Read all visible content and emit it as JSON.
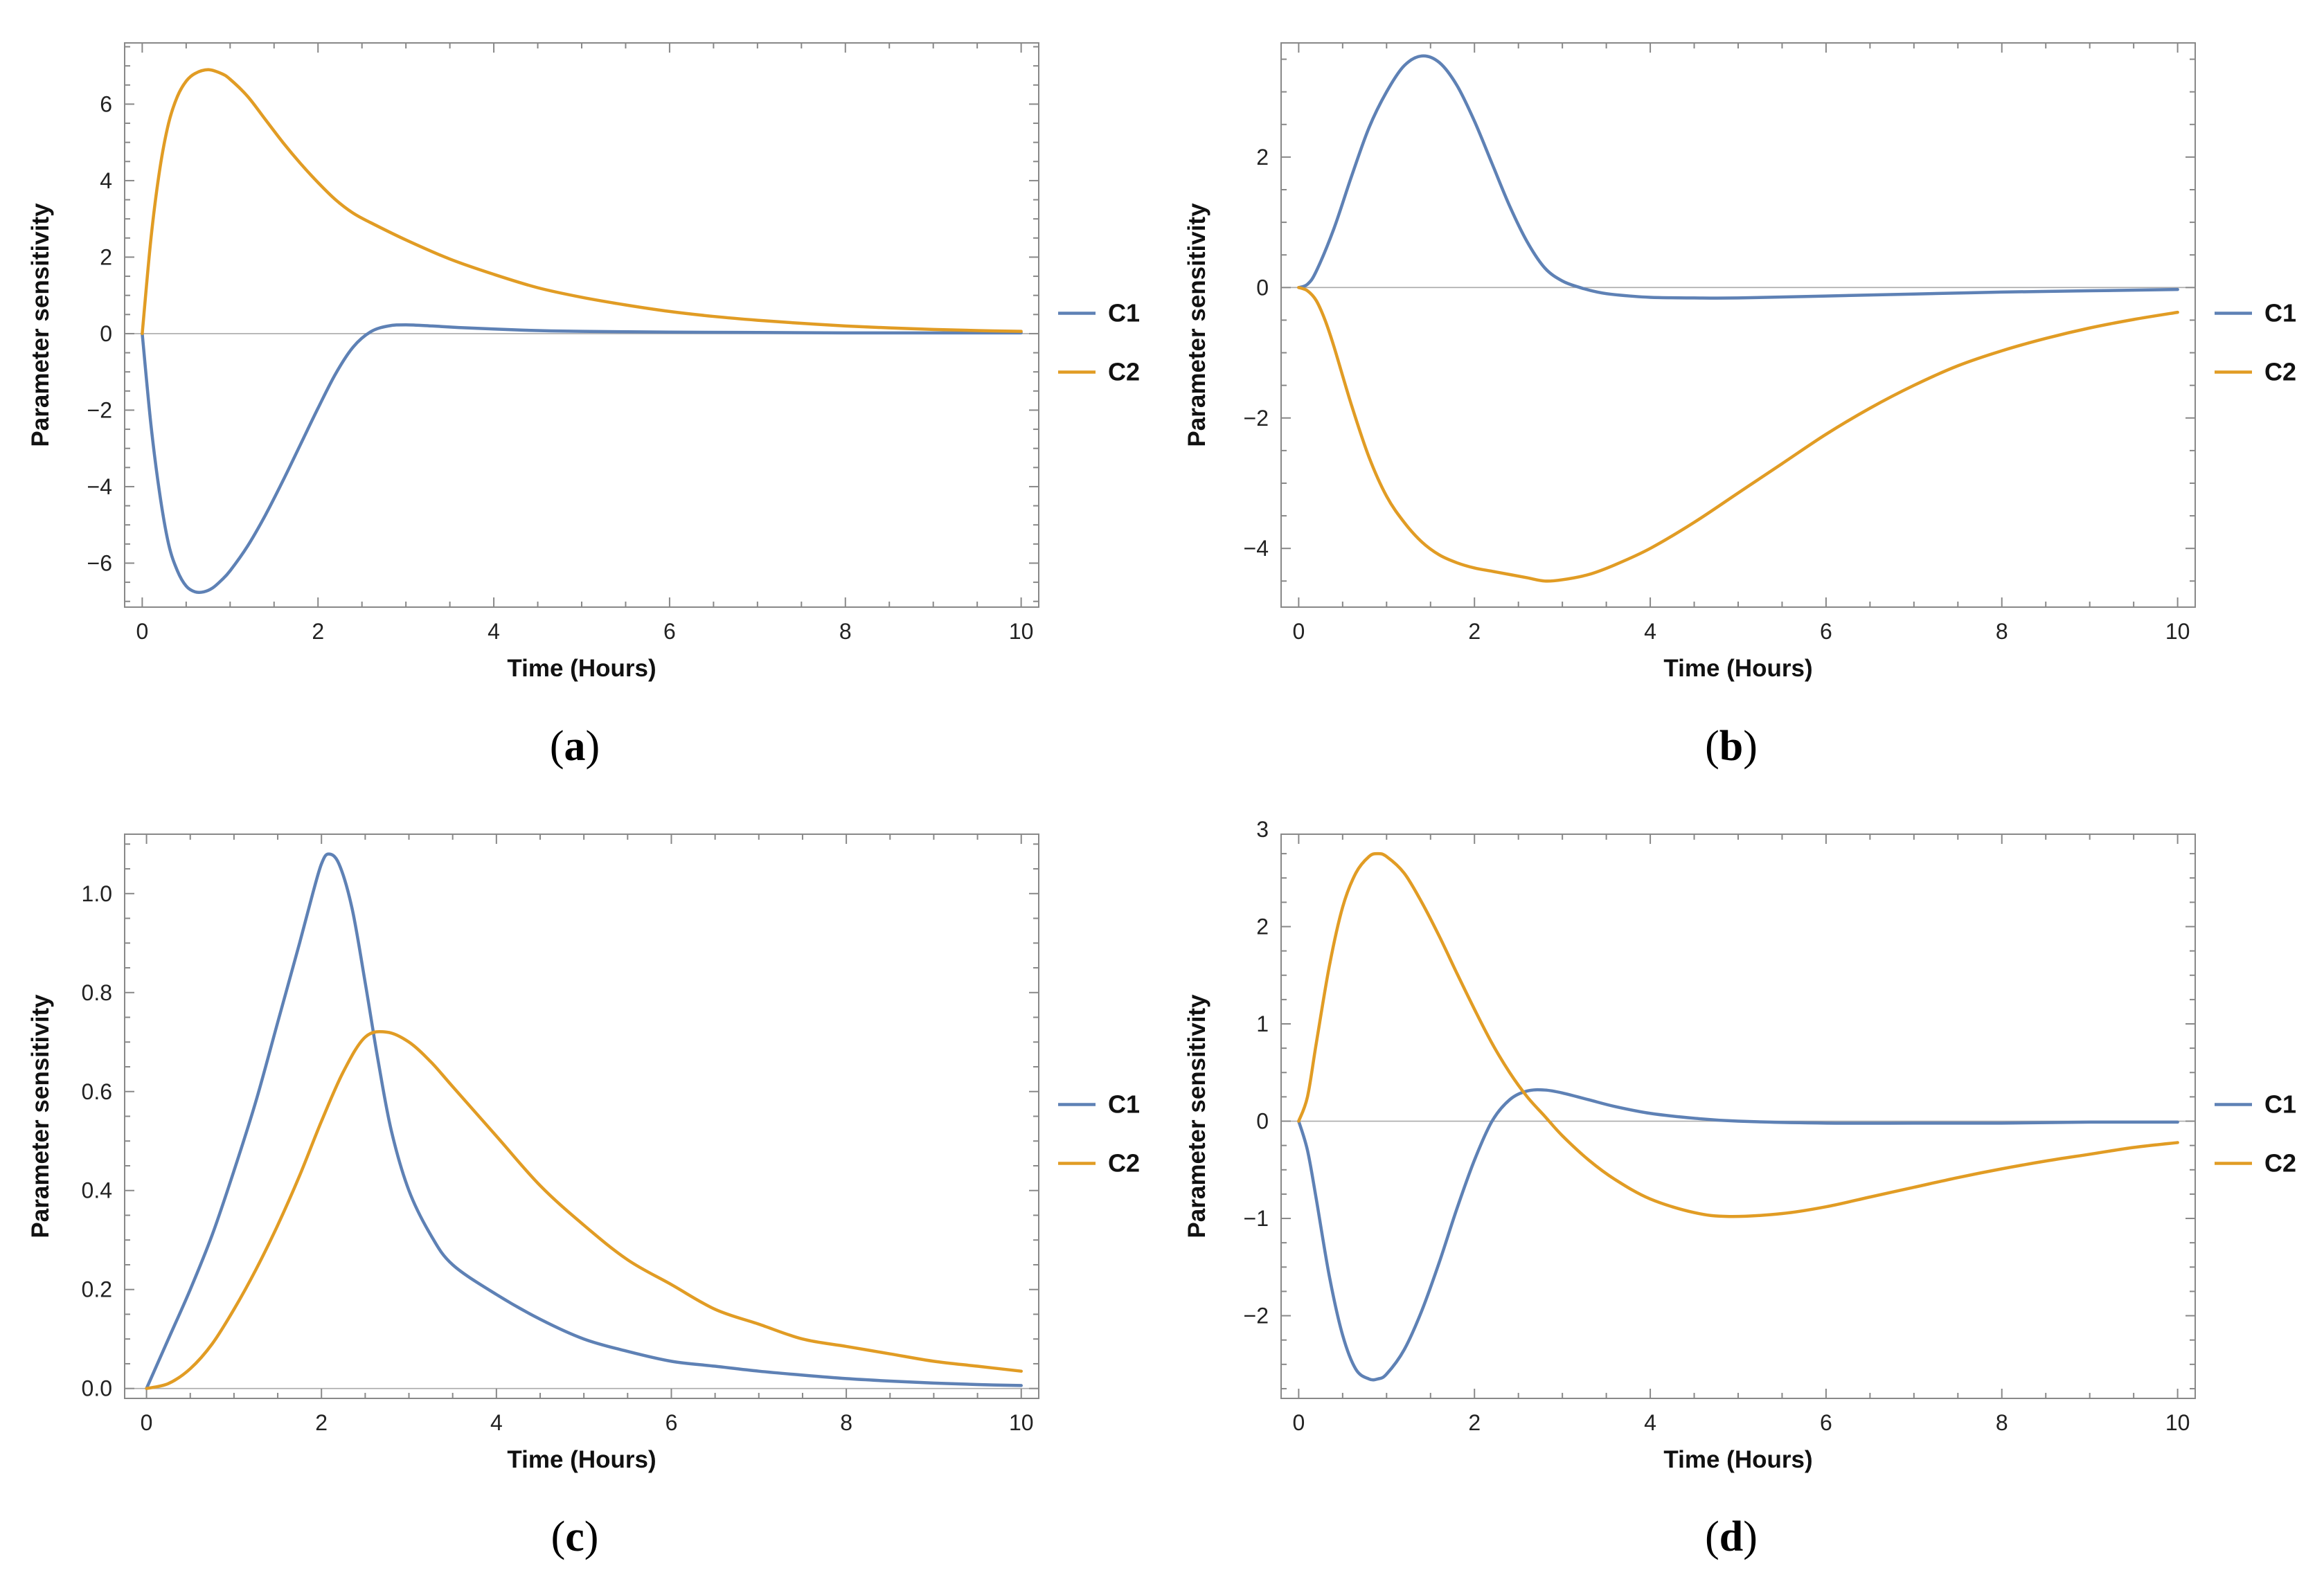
{
  "colors": {
    "C1": "#5e81b5",
    "C2": "#e19c24",
    "frame": "#888888",
    "zero_line": "#aaaaaa"
  },
  "chart_data": [
    {
      "type": "line",
      "panel": "a",
      "caption_letter": "a",
      "title": "",
      "xlabel": "Time (Hours)",
      "ylabel": "Parameter sensitivity",
      "xlim": [
        -0.2,
        10.2
      ],
      "ylim": [
        -7.15,
        7.6
      ],
      "xticks": [
        0,
        2,
        4,
        6,
        8,
        10
      ],
      "xtick_labels": [
        "0",
        "2",
        "4",
        "6",
        "8",
        "10"
      ],
      "yticks": [
        -6,
        -4,
        -2,
        0,
        2,
        4,
        6
      ],
      "ytick_labels": [
        "−6",
        "−4",
        "−2",
        "0",
        "2",
        "4",
        "6"
      ],
      "legend": [
        "C1",
        "C2"
      ],
      "legend_position": "right",
      "series": [
        {
          "name": "C1",
          "x": [
            0,
            0.1,
            0.2,
            0.3,
            0.4,
            0.5,
            0.6,
            0.7,
            0.8,
            0.9,
            1.0,
            1.2,
            1.4,
            1.6,
            1.8,
            2.0,
            2.2,
            2.4,
            2.6,
            2.8,
            3.0,
            3.3,
            3.6,
            4.0,
            4.5,
            5.0,
            6.0,
            7.0,
            8.0,
            9.0,
            10.0
          ],
          "values": [
            0,
            -2.4,
            -4.2,
            -5.5,
            -6.2,
            -6.6,
            -6.75,
            -6.75,
            -6.65,
            -6.45,
            -6.2,
            -5.55,
            -4.75,
            -3.85,
            -2.9,
            -1.95,
            -1.05,
            -0.35,
            0.05,
            0.2,
            0.23,
            0.2,
            0.16,
            0.12,
            0.08,
            0.06,
            0.04,
            0.03,
            0.02,
            0.02,
            0.02
          ]
        },
        {
          "name": "C2",
          "x": [
            0,
            0.1,
            0.2,
            0.3,
            0.4,
            0.5,
            0.6,
            0.75,
            0.9,
            1.0,
            1.2,
            1.4,
            1.6,
            1.8,
            2.0,
            2.2,
            2.4,
            2.6,
            3.0,
            3.5,
            4.0,
            4.5,
            5.0,
            5.5,
            6.0,
            6.5,
            7.0,
            7.5,
            8.0,
            8.5,
            9.0,
            9.5,
            10.0
          ],
          "values": [
            0,
            2.5,
            4.3,
            5.5,
            6.2,
            6.6,
            6.8,
            6.9,
            6.8,
            6.65,
            6.2,
            5.6,
            5.0,
            4.45,
            3.95,
            3.5,
            3.15,
            2.9,
            2.45,
            1.95,
            1.55,
            1.2,
            0.95,
            0.75,
            0.58,
            0.45,
            0.35,
            0.27,
            0.2,
            0.15,
            0.11,
            0.08,
            0.06
          ]
        }
      ]
    },
    {
      "type": "line",
      "panel": "b",
      "caption_letter": "b",
      "title": "",
      "xlabel": "Time (Hours)",
      "ylabel": "Parameter sensitivity",
      "xlim": [
        -0.2,
        10.2
      ],
      "ylim": [
        -4.9,
        3.75
      ],
      "xticks": [
        0,
        2,
        4,
        6,
        8,
        10
      ],
      "xtick_labels": [
        "0",
        "2",
        "4",
        "6",
        "8",
        "10"
      ],
      "yticks": [
        -4,
        -2,
        0,
        2
      ],
      "ytick_labels": [
        "−4",
        "−2",
        "0",
        "2"
      ],
      "legend": [
        "C1",
        "C2"
      ],
      "legend_position": "right",
      "series": [
        {
          "name": "C1",
          "x": [
            0,
            0.1,
            0.2,
            0.4,
            0.6,
            0.8,
            1.0,
            1.2,
            1.4,
            1.6,
            1.8,
            2.0,
            2.2,
            2.4,
            2.6,
            2.8,
            3.0,
            3.2,
            3.4,
            3.6,
            4.0,
            4.5,
            5.0,
            6.0,
            7.0,
            8.0,
            9.0,
            10.0
          ],
          "values": [
            0,
            0.05,
            0.25,
            0.9,
            1.7,
            2.45,
            3.0,
            3.4,
            3.55,
            3.45,
            3.1,
            2.55,
            1.9,
            1.25,
            0.7,
            0.3,
            0.1,
            0.0,
            -0.07,
            -0.11,
            -0.15,
            -0.16,
            -0.16,
            -0.13,
            -0.1,
            -0.07,
            -0.05,
            -0.03
          ]
        },
        {
          "name": "C2",
          "x": [
            0,
            0.1,
            0.2,
            0.3,
            0.4,
            0.6,
            0.8,
            1.0,
            1.2,
            1.4,
            1.6,
            1.8,
            2.0,
            2.2,
            2.4,
            2.6,
            2.8,
            3.0,
            3.3,
            3.6,
            4.0,
            4.5,
            5.0,
            5.5,
            6.0,
            6.5,
            7.0,
            7.5,
            8.0,
            8.5,
            9.0,
            9.5,
            10.0
          ],
          "values": [
            0,
            -0.05,
            -0.2,
            -0.5,
            -0.9,
            -1.8,
            -2.6,
            -3.2,
            -3.6,
            -3.9,
            -4.1,
            -4.22,
            -4.3,
            -4.35,
            -4.4,
            -4.45,
            -4.5,
            -4.48,
            -4.4,
            -4.25,
            -4.0,
            -3.6,
            -3.15,
            -2.7,
            -2.25,
            -1.85,
            -1.5,
            -1.2,
            -0.97,
            -0.78,
            -0.62,
            -0.49,
            -0.38
          ]
        }
      ]
    },
    {
      "type": "line",
      "panel": "c",
      "caption_letter": "c",
      "title": "",
      "xlabel": "Time (Hours)",
      "ylabel": "Parameter sensitivity",
      "xlim": [
        -0.25,
        10.2
      ],
      "ylim": [
        -0.02,
        1.12
      ],
      "xticks": [
        0,
        2,
        4,
        6,
        8,
        10
      ],
      "xtick_labels": [
        "0",
        "2",
        "4",
        "6",
        "8",
        "10"
      ],
      "yticks": [
        0.0,
        0.2,
        0.4,
        0.6,
        0.8,
        1.0
      ],
      "ytick_labels": [
        "0.0",
        "0.2",
        "0.4",
        "0.6",
        "0.8",
        "1.0"
      ],
      "legend": [
        "C1",
        "C2"
      ],
      "legend_position": "right",
      "series": [
        {
          "name": "C1",
          "x": [
            0,
            0.25,
            0.5,
            0.75,
            1.0,
            1.25,
            1.5,
            1.75,
            1.9,
            2.0,
            2.08,
            2.2,
            2.35,
            2.5,
            2.65,
            2.8,
            3.0,
            3.25,
            3.5,
            4.0,
            4.5,
            5.0,
            5.5,
            6.0,
            6.5,
            7.0,
            7.5,
            8.0,
            8.5,
            9.0,
            9.5,
            10.0
          ],
          "values": [
            0.0,
            0.1,
            0.2,
            0.31,
            0.44,
            0.58,
            0.74,
            0.9,
            1.0,
            1.06,
            1.08,
            1.06,
            0.97,
            0.82,
            0.66,
            0.52,
            0.4,
            0.31,
            0.25,
            0.19,
            0.14,
            0.1,
            0.075,
            0.055,
            0.045,
            0.035,
            0.027,
            0.02,
            0.015,
            0.011,
            0.008,
            0.006
          ]
        },
        {
          "name": "C2",
          "x": [
            0,
            0.25,
            0.5,
            0.75,
            1.0,
            1.25,
            1.5,
            1.75,
            2.0,
            2.25,
            2.5,
            2.75,
            3.0,
            3.25,
            3.5,
            4.0,
            4.5,
            5.0,
            5.5,
            6.0,
            6.5,
            7.0,
            7.5,
            8.0,
            8.5,
            9.0,
            9.5,
            10.0
          ],
          "values": [
            0.0,
            0.01,
            0.04,
            0.09,
            0.16,
            0.24,
            0.33,
            0.43,
            0.54,
            0.64,
            0.71,
            0.72,
            0.7,
            0.66,
            0.61,
            0.51,
            0.41,
            0.33,
            0.26,
            0.21,
            0.16,
            0.13,
            0.1,
            0.085,
            0.07,
            0.055,
            0.045,
            0.035
          ]
        }
      ]
    },
    {
      "type": "line",
      "panel": "d",
      "caption_letter": "d",
      "title": "",
      "xlabel": "Time (Hours)",
      "ylabel": "Parameter sensitivity",
      "xlim": [
        -0.2,
        10.2
      ],
      "ylim": [
        -2.85,
        2.95
      ],
      "xticks": [
        0,
        2,
        4,
        6,
        8,
        10
      ],
      "xtick_labels": [
        "0",
        "2",
        "4",
        "6",
        "8",
        "10"
      ],
      "yticks": [
        -2,
        -1,
        0,
        1,
        2,
        3
      ],
      "ytick_labels": [
        "−2",
        "−1",
        "0",
        "1",
        "2",
        "3"
      ],
      "legend": [
        "C1",
        "C2"
      ],
      "legend_position": "right",
      "series": [
        {
          "name": "C1",
          "x": [
            0,
            0.1,
            0.2,
            0.35,
            0.5,
            0.65,
            0.8,
            0.9,
            1.0,
            1.2,
            1.4,
            1.6,
            1.8,
            2.0,
            2.2,
            2.4,
            2.6,
            2.8,
            3.0,
            3.3,
            3.6,
            4.0,
            4.5,
            5.0,
            6.0,
            7.0,
            8.0,
            9.0,
            10.0
          ],
          "values": [
            0,
            -0.3,
            -0.8,
            -1.6,
            -2.2,
            -2.55,
            -2.65,
            -2.65,
            -2.6,
            -2.35,
            -1.95,
            -1.45,
            -0.9,
            -0.4,
            0.0,
            0.22,
            0.31,
            0.32,
            0.29,
            0.22,
            0.15,
            0.08,
            0.03,
            0.0,
            -0.02,
            -0.02,
            -0.02,
            -0.01,
            -0.01
          ]
        },
        {
          "name": "C2",
          "x": [
            0,
            0.1,
            0.2,
            0.35,
            0.5,
            0.65,
            0.8,
            0.9,
            1.0,
            1.2,
            1.4,
            1.6,
            1.8,
            2.0,
            2.2,
            2.4,
            2.6,
            2.8,
            3.0,
            3.3,
            3.6,
            4.0,
            4.5,
            4.9,
            5.5,
            6.0,
            6.5,
            7.0,
            7.5,
            8.0,
            8.5,
            9.0,
            9.5,
            10.0
          ],
          "values": [
            0,
            0.25,
            0.8,
            1.6,
            2.2,
            2.55,
            2.72,
            2.75,
            2.72,
            2.55,
            2.25,
            1.9,
            1.52,
            1.15,
            0.8,
            0.5,
            0.25,
            0.05,
            -0.15,
            -0.4,
            -0.6,
            -0.8,
            -0.94,
            -0.98,
            -0.95,
            -0.88,
            -0.78,
            -0.68,
            -0.58,
            -0.49,
            -0.41,
            -0.34,
            -0.27,
            -0.22
          ]
        }
      ]
    }
  ]
}
